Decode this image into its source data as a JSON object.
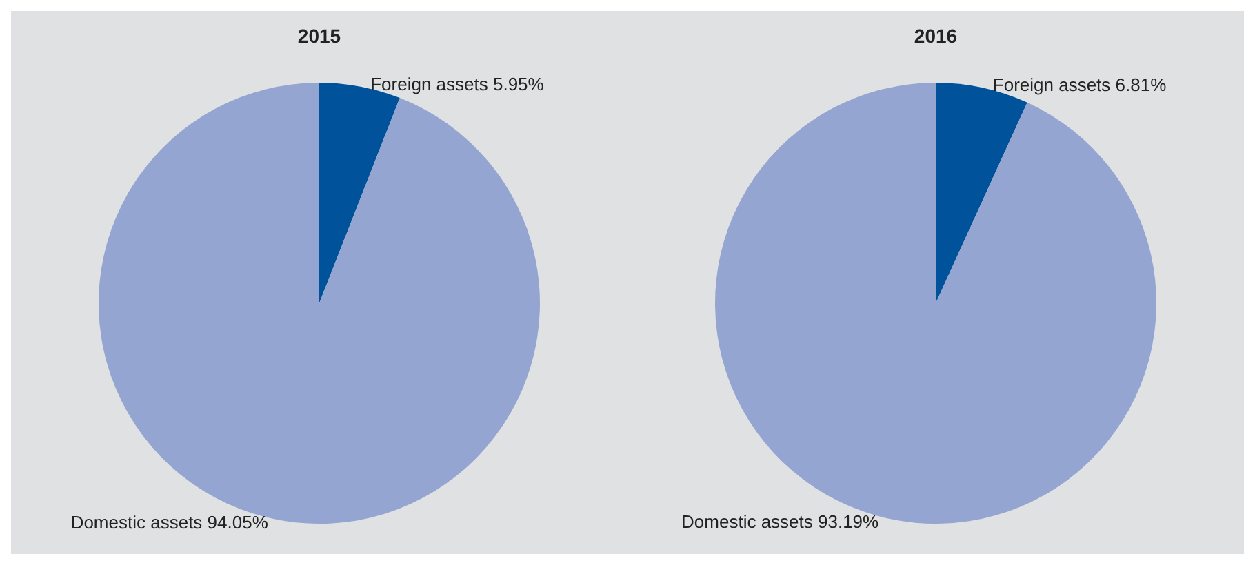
{
  "chart_data": [
    {
      "type": "pie",
      "title": "2015",
      "categories": [
        "Foreign assets",
        "Domestic assets"
      ],
      "values": [
        5.95,
        94.05
      ],
      "colors": [
        "#00529b",
        "#93a5d0"
      ],
      "value_labels": [
        "5.95%",
        "94.05%"
      ]
    },
    {
      "type": "pie",
      "title": "2016",
      "categories": [
        "Foreign assets",
        "Domestic assets"
      ],
      "values": [
        6.81,
        93.19
      ],
      "colors": [
        "#00529b",
        "#93a5d0"
      ],
      "value_labels": [
        "6.81%",
        "93.19%"
      ]
    }
  ]
}
